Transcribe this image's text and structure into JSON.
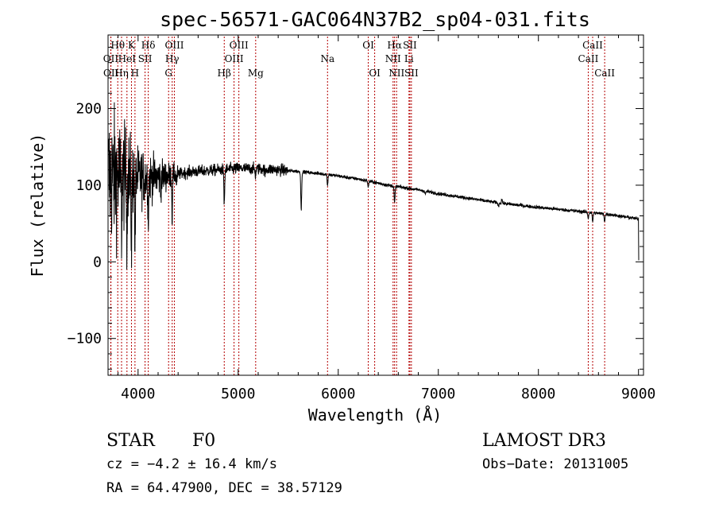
{
  "chart_data": {
    "type": "line",
    "title": "spec-56571-GAC064N37B2_sp04-031.fits",
    "xlabel": "Wavelength (Å)",
    "ylabel": "Flux (relative)",
    "xlim": [
      3700,
      9050
    ],
    "ylim": [
      -148,
      296
    ],
    "xticks": [
      4000,
      5000,
      6000,
      7000,
      8000,
      9000
    ],
    "xtick_labels": [
      "4000",
      "5000",
      "6000",
      "7000",
      "8000",
      "9000"
    ],
    "yticks": [
      -100,
      0,
      100,
      200
    ],
    "ytick_labels": [
      "−100",
      "0",
      "100",
      "200"
    ],
    "spectrum": {
      "continuum": [
        [
          3700,
          110
        ],
        [
          3900,
          112
        ],
        [
          4100,
          110
        ],
        [
          4300,
          112
        ],
        [
          4500,
          117
        ],
        [
          4800,
          120
        ],
        [
          5000,
          122
        ],
        [
          5300,
          121
        ],
        [
          5600,
          118
        ],
        [
          5900,
          114
        ],
        [
          6200,
          108
        ],
        [
          6500,
          100
        ],
        [
          6800,
          94
        ],
        [
          7000,
          89
        ],
        [
          7300,
          83
        ],
        [
          7600,
          77
        ],
        [
          8000,
          71
        ],
        [
          8400,
          66
        ],
        [
          8700,
          62
        ],
        [
          9000,
          56
        ]
      ],
      "absorption_lines": [
        [
          3835,
          60
        ],
        [
          3889,
          70
        ],
        [
          3934,
          90
        ],
        [
          3970,
          95
        ],
        [
          4102,
          55
        ],
        [
          4227,
          15
        ],
        [
          4340,
          55
        ],
        [
          4384,
          12
        ],
        [
          4861,
          45
        ],
        [
          5172,
          8
        ],
        [
          5270,
          6
        ],
        [
          5630,
          50
        ],
        [
          5893,
          14
        ],
        [
          6300,
          8
        ],
        [
          6563,
          22
        ],
        [
          6870,
          4
        ],
        [
          7600,
          5
        ],
        [
          8498,
          8
        ],
        [
          8542,
          12
        ],
        [
          8662,
          10
        ]
      ],
      "emission_lines": [
        [
          7635,
          6
        ]
      ],
      "end_drop": [
        9000,
        2
      ]
    },
    "lines": [
      {
        "name": "Hθ",
        "wl": 3797,
        "row": 1
      },
      {
        "name": "OII",
        "wl": 3727,
        "row": 2
      },
      {
        "name": "OII",
        "wl": 3729,
        "row": 3
      },
      {
        "name": "K",
        "wl": 3934,
        "row": 1
      },
      {
        "name": "HeI",
        "wl": 3889,
        "row": 2
      },
      {
        "name": "Hη",
        "wl": 3835,
        "row": 3
      },
      {
        "name": "Hδ",
        "wl": 4102,
        "row": 1
      },
      {
        "name": "SII",
        "wl": 4070,
        "row": 2
      },
      {
        "name": "H",
        "wl": 3969,
        "row": 3
      },
      {
        "name": "OIII",
        "wl": 4363,
        "row": 1
      },
      {
        "name": "Hγ",
        "wl": 4341,
        "row": 2
      },
      {
        "name": "G",
        "wl": 4305,
        "row": 3
      },
      {
        "name": "OIII",
        "wl": 5007,
        "row": 1
      },
      {
        "name": "OIII",
        "wl": 4959,
        "row": 2
      },
      {
        "name": "Hβ",
        "wl": 4861,
        "row": 3
      },
      {
        "name": "Mg",
        "wl": 5175,
        "row": 3
      },
      {
        "name": "Na",
        "wl": 5893,
        "row": 2
      },
      {
        "name": "OI",
        "wl": 6300,
        "row": 1
      },
      {
        "name": "OI",
        "wl": 6364,
        "row": 3
      },
      {
        "name": "Hα",
        "wl": 6563,
        "row": 1
      },
      {
        "name": "NII",
        "wl": 6548,
        "row": 2
      },
      {
        "name": "NII",
        "wl": 6583,
        "row": 3
      },
      {
        "name": "SII",
        "wl": 6716,
        "row": 1
      },
      {
        "name": "Li",
        "wl": 6707,
        "row": 2
      },
      {
        "name": "SII",
        "wl": 6731,
        "row": 3
      },
      {
        "name": "CaII",
        "wl": 8542,
        "row": 1
      },
      {
        "name": "CaII",
        "wl": 8498,
        "row": 2
      },
      {
        "name": "CaII",
        "wl": 8662,
        "row": 3
      }
    ]
  },
  "info": {
    "object_class": "STAR",
    "subclass": "F0",
    "cz": "cz = −4.2 ± 16.4 km/s",
    "coords": "RA =  64.47900, DEC =  38.57129",
    "survey": "LAMOST DR3",
    "obs_date": "Obs−Date: 20131005"
  }
}
